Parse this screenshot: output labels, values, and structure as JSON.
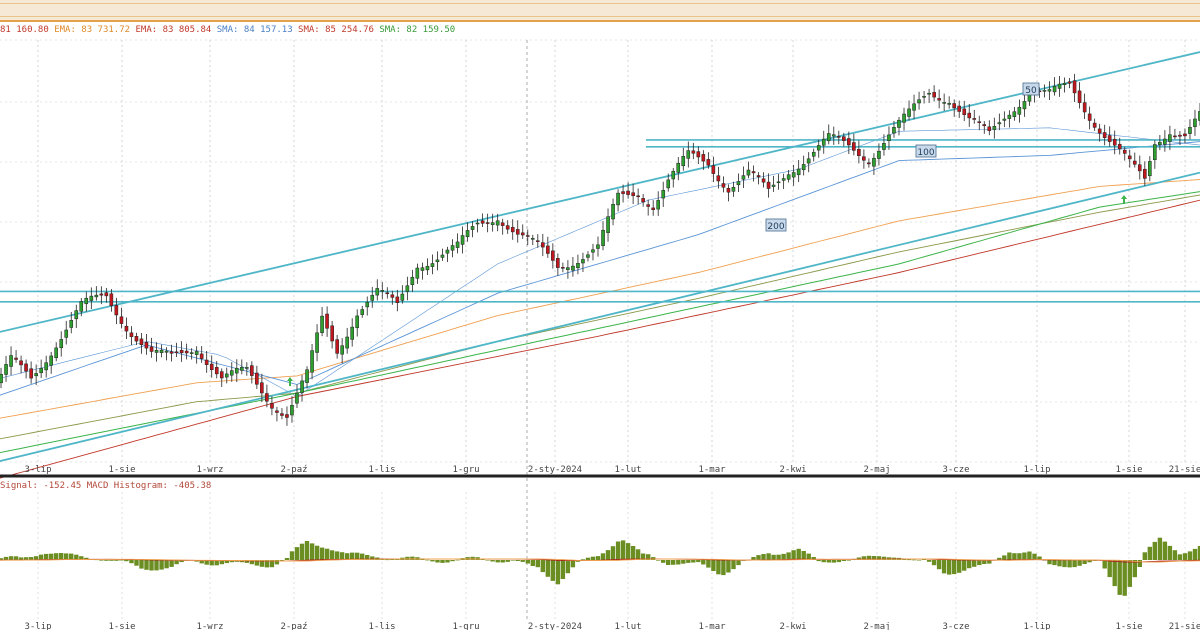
{
  "legend": [
    {
      "text": "81 160.80",
      "color": "#c0392b"
    },
    {
      "text": "EMA: 83 731.72",
      "color": "#e08a2a"
    },
    {
      "text": "EMA: 83 805.84",
      "color": "#c0392b"
    },
    {
      "text": "SMA: 84 157.13",
      "color": "#4a7fc1"
    },
    {
      "text": "SMA: 85 254.76",
      "color": "#c0392b"
    },
    {
      "text": "SMA: 82 159.50",
      "color": "#3a9a3a"
    }
  ],
  "macd_legend": "Signal: -152.45  MACD Histogram: -405.38",
  "colors": {
    "up": "#2e9e2e",
    "down": "#c0181e",
    "channel": "#4fb6c8",
    "ema_orange": "#f0a050",
    "ema_red": "#c0392b",
    "sma_blue": "#5b95d6",
    "sma_olive": "#8a9a4a",
    "sma_green": "#3cb44b",
    "hist": "#6b8e23"
  },
  "chart_data": {
    "type": "candlestick",
    "x_labels": [
      "3-lip",
      "1-sie",
      "1-wrz",
      "2-paź",
      "1-lis",
      "1-gru",
      "2-sty-2024",
      "1-lut",
      "1-mar",
      "2-kwi",
      "2-maj",
      "3-cze",
      "1-lip",
      "1-sie",
      "21-sie"
    ],
    "level_labels": [
      "50",
      "100",
      "200"
    ],
    "arrow_markers": 2,
    "price_path": [
      [
        0,
        75500
      ],
      [
        3,
        76800
      ],
      [
        7,
        75800
      ],
      [
        12,
        78000
      ],
      [
        17,
        80000
      ],
      [
        22,
        80600
      ],
      [
        26,
        79000
      ],
      [
        31,
        77200
      ],
      [
        35,
        77000
      ],
      [
        40,
        77800
      ],
      [
        45,
        75800
      ],
      [
        50,
        76200
      ],
      [
        55,
        74500
      ],
      [
        58,
        73800
      ],
      [
        62,
        76000
      ],
      [
        65,
        79200
      ],
      [
        68,
        77500
      ],
      [
        72,
        79800
      ],
      [
        76,
        80800
      ],
      [
        80,
        80000
      ],
      [
        84,
        82600
      ],
      [
        88,
        82900
      ],
      [
        92,
        83400
      ],
      [
        96,
        84800
      ],
      [
        100,
        85400
      ],
      [
        104,
        84200
      ],
      [
        108,
        83400
      ],
      [
        112,
        82400
      ],
      [
        116,
        82900
      ],
      [
        120,
        83400
      ],
      [
        124,
        86300
      ],
      [
        128,
        86700
      ],
      [
        131,
        86000
      ],
      [
        134,
        87300
      ],
      [
        138,
        88700
      ],
      [
        142,
        88400
      ],
      [
        146,
        87000
      ],
      [
        150,
        87700
      ],
      [
        154,
        86600
      ],
      [
        158,
        88000
      ],
      [
        162,
        88800
      ],
      [
        166,
        89700
      ],
      [
        170,
        89300
      ],
      [
        174,
        88700
      ],
      [
        178,
        90000
      ],
      [
        182,
        91100
      ],
      [
        186,
        92500
      ],
      [
        190,
        92200
      ],
      [
        194,
        90800
      ],
      [
        198,
        89900
      ],
      [
        202,
        91400
      ],
      [
        206,
        92600
      ],
      [
        210,
        92300
      ],
      [
        214,
        92800
      ],
      [
        218,
        91200
      ],
      [
        222,
        89700
      ],
      [
        226,
        88200
      ],
      [
        229,
        87300
      ],
      [
        231,
        89600
      ],
      [
        234,
        90400
      ],
      [
        237,
        90000
      ],
      [
        240,
        91000
      ]
    ],
    "ma_series": [
      {
        "values": [
          [
            0,
            73500
          ],
          [
            40,
            75600
          ],
          [
            60,
            76000
          ],
          [
            100,
            79500
          ],
          [
            140,
            82000
          ],
          [
            180,
            85000
          ],
          [
            220,
            87000
          ],
          [
            240,
            87400
          ]
        ]
      },
      {
        "values": [
          [
            0,
            72300
          ],
          [
            40,
            74500
          ],
          [
            60,
            75000
          ],
          [
            100,
            78000
          ],
          [
            140,
            80500
          ],
          [
            180,
            83200
          ],
          [
            220,
            85500
          ],
          [
            240,
            86500
          ]
        ]
      },
      {
        "values": [
          [
            0,
            74800
          ],
          [
            30,
            77800
          ],
          [
            60,
            75500
          ],
          [
            100,
            80800
          ],
          [
            140,
            84200
          ],
          [
            180,
            88500
          ],
          [
            210,
            88800
          ],
          [
            240,
            89600
          ]
        ]
      },
      {
        "values": [
          [
            0,
            75800
          ],
          [
            30,
            78000
          ],
          [
            45,
            77200
          ],
          [
            60,
            74800
          ],
          [
            100,
            82500
          ],
          [
            130,
            86200
          ],
          [
            160,
            88000
          ],
          [
            180,
            90200
          ],
          [
            210,
            90400
          ],
          [
            240,
            89400
          ]
        ]
      },
      {
        "values": [
          [
            0,
            71500
          ],
          [
            60,
            75000
          ],
          [
            100,
            77500
          ],
          [
            140,
            80000
          ],
          [
            180,
            82500
          ],
          [
            220,
            85800
          ],
          [
            240,
            86700
          ]
        ]
      }
    ],
    "channel": {
      "upper": [
        [
          0,
          78500
        ],
        [
          240,
          94800
        ]
      ],
      "lower": [
        [
          0,
          71000
        ],
        [
          240,
          87800
        ]
      ]
    },
    "levels": [
      89700,
      89300,
      80900,
      80300
    ],
    "macd_path": [
      [
        0,
        -200
      ],
      [
        5,
        -100
      ],
      [
        10,
        400
      ],
      [
        15,
        650
      ],
      [
        20,
        850
      ],
      [
        25,
        700
      ],
      [
        30,
        200
      ],
      [
        35,
        -300
      ],
      [
        40,
        -400
      ],
      [
        45,
        -600
      ],
      [
        50,
        -900
      ],
      [
        55,
        -1200
      ],
      [
        58,
        -1100
      ],
      [
        62,
        -200
      ],
      [
        66,
        500
      ],
      [
        70,
        750
      ],
      [
        76,
        1100
      ],
      [
        80,
        1150
      ],
      [
        86,
        1200
      ],
      [
        92,
        1150
      ],
      [
        98,
        1250
      ],
      [
        103,
        1200
      ],
      [
        108,
        700
      ],
      [
        112,
        -400
      ],
      [
        116,
        -600
      ],
      [
        120,
        -400
      ],
      [
        125,
        900
      ],
      [
        130,
        1150
      ],
      [
        135,
        1000
      ],
      [
        140,
        700
      ],
      [
        145,
        -100
      ],
      [
        150,
        -200
      ],
      [
        155,
        200
      ],
      [
        160,
        900
      ],
      [
        165,
        700
      ],
      [
        170,
        800
      ],
      [
        175,
        900
      ],
      [
        180,
        1200
      ],
      [
        185,
        1100
      ],
      [
        190,
        300
      ],
      [
        195,
        -200
      ],
      [
        198,
        -400
      ],
      [
        202,
        100
      ],
      [
        206,
        500
      ],
      [
        210,
        200
      ],
      [
        215,
        -100
      ],
      [
        220,
        -300
      ],
      [
        225,
        -2400
      ],
      [
        228,
        -2300
      ],
      [
        232,
        -1300
      ],
      [
        236,
        -900
      ],
      [
        240,
        -200
      ]
    ]
  }
}
